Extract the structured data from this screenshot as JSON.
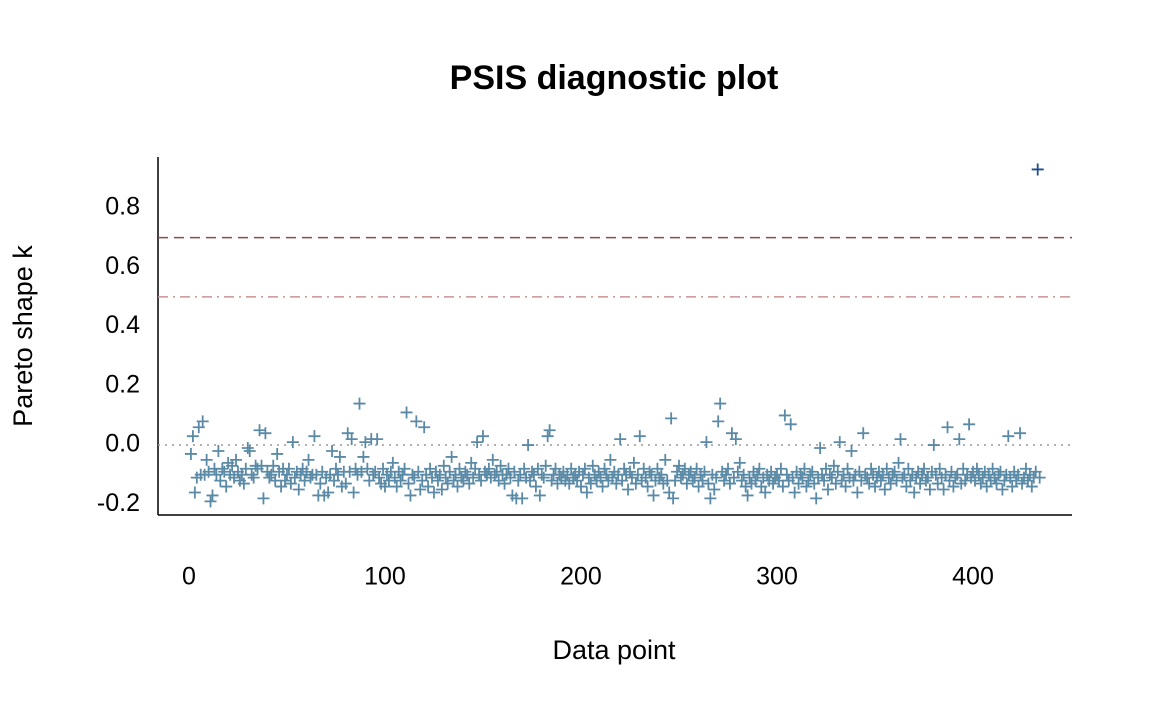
{
  "chart_data": {
    "type": "scatter",
    "title": "PSIS diagnostic plot",
    "x_label": "Data point",
    "y_label": "Pareto shape k",
    "xlim": [
      -15.8,
      450.5
    ],
    "ylim": [
      -0.236,
      0.972
    ],
    "xticks": [
      0,
      100,
      200,
      300,
      400
    ],
    "yticks": [
      -0.2,
      {
        "value": 0,
        "label": "0.0"
      },
      0.2,
      0.4,
      0.6,
      0.8
    ],
    "hlines": [
      {
        "value": 0,
        "color": "#999999",
        "style": "dotted"
      },
      {
        "value": 0.5,
        "color": "#c99393",
        "style": "dashdot"
      },
      {
        "value": 0.7,
        "color": "#8f4c4c",
        "style": "dashed"
      }
    ],
    "marker": "plus",
    "series": [
      {
        "color": "#5b8aa6",
        "x": [
          1,
          2,
          3,
          4,
          5,
          6,
          7,
          8,
          9,
          10,
          11,
          12,
          13,
          14,
          15,
          16,
          17,
          18,
          19,
          20,
          21,
          22,
          23,
          24,
          25,
          26,
          27,
          28,
          29,
          30,
          31,
          32,
          33,
          34,
          35,
          36,
          37,
          38,
          39,
          40,
          41,
          42,
          43,
          44,
          45,
          46,
          47,
          48,
          49,
          50,
          51,
          52,
          53,
          54,
          55,
          56,
          57,
          58,
          59,
          60,
          61,
          62,
          63,
          64,
          65,
          66,
          67,
          68,
          69,
          70,
          71,
          72,
          73,
          74,
          75,
          76,
          77,
          78,
          79,
          80,
          81,
          82,
          83,
          84,
          85,
          86,
          87,
          88,
          89,
          90,
          91,
          92,
          93,
          94,
          95,
          96,
          97,
          98,
          99,
          100,
          101,
          102,
          103,
          104,
          105,
          106,
          107,
          108,
          109,
          110,
          111,
          112,
          113,
          114,
          115,
          116,
          117,
          118,
          119,
          120,
          121,
          122,
          123,
          124,
          125,
          126,
          127,
          128,
          129,
          130,
          131,
          132,
          133,
          134,
          135,
          136,
          137,
          138,
          139,
          140,
          141,
          142,
          143,
          144,
          145,
          146,
          147,
          148,
          149,
          150,
          151,
          152,
          153,
          154,
          155,
          156,
          157,
          158,
          159,
          160,
          161,
          162,
          163,
          164,
          165,
          166,
          167,
          168,
          169,
          170,
          171,
          172,
          173,
          174,
          175,
          176,
          177,
          178,
          179,
          180,
          181,
          182,
          183,
          184,
          185,
          186,
          187,
          188,
          189,
          190,
          191,
          192,
          193,
          194,
          195,
          196,
          197,
          198,
          199,
          200,
          201,
          202,
          203,
          204,
          205,
          206,
          207,
          208,
          209,
          210,
          211,
          212,
          213,
          214,
          215,
          216,
          217,
          218,
          219,
          220,
          221,
          222,
          223,
          224,
          225,
          226,
          227,
          228,
          229,
          230,
          231,
          232,
          233,
          234,
          235,
          236,
          237,
          238,
          239,
          240,
          241,
          242,
          243,
          244,
          245,
          246,
          247,
          248,
          249,
          250,
          251,
          252,
          253,
          254,
          255,
          256,
          257,
          258,
          259,
          260,
          261,
          262,
          263,
          264,
          265,
          266,
          267,
          268,
          269,
          270,
          271,
          272,
          273,
          274,
          275,
          276,
          277,
          278,
          279,
          280,
          281,
          282,
          283,
          284,
          285,
          286,
          287,
          288,
          289,
          290,
          291,
          292,
          293,
          294,
          295,
          296,
          297,
          298,
          299,
          300,
          301,
          302,
          303,
          304,
          305,
          306,
          307,
          308,
          309,
          310,
          311,
          312,
          313,
          314,
          315,
          316,
          317,
          318,
          319,
          320,
          321,
          322,
          323,
          324,
          325,
          326,
          327,
          328,
          329,
          330,
          331,
          332,
          333,
          334,
          335,
          336,
          337,
          338,
          339,
          340,
          341,
          342,
          343,
          344,
          345,
          346,
          347,
          348,
          349,
          350,
          351,
          352,
          353,
          354,
          355,
          356,
          357,
          358,
          359,
          360,
          361,
          362,
          363,
          364,
          365,
          366,
          367,
          368,
          369,
          370,
          371,
          372,
          373,
          374,
          375,
          376,
          377,
          378,
          379,
          380,
          381,
          382,
          383,
          384,
          385,
          386,
          387,
          388,
          389,
          390,
          391,
          392,
          393,
          394,
          395,
          396,
          397,
          398,
          399,
          400,
          401,
          402,
          403,
          404,
          405,
          406,
          407,
          408,
          409,
          410,
          411,
          412,
          413,
          414,
          415,
          416,
          417,
          418,
          419,
          420,
          421,
          422,
          423,
          424,
          425,
          426,
          427,
          428,
          429,
          430,
          431,
          432,
          434
        ],
        "values": [
          -0.03,
          0.03,
          -0.16,
          -0.11,
          0.06,
          -0.1,
          0.08,
          -0.1,
          -0.05,
          -0.09,
          -0.19,
          -0.17,
          -0.08,
          -0.1,
          -0.02,
          -0.12,
          -0.08,
          -0.09,
          -0.14,
          -0.06,
          -0.1,
          -0.07,
          -0.11,
          -0.05,
          -0.09,
          -0.12,
          -0.1,
          -0.13,
          -0.08,
          -0.01,
          -0.02,
          -0.1,
          -0.11,
          -0.07,
          -0.08,
          0.05,
          -0.07,
          -0.18,
          0.04,
          -0.09,
          -0.11,
          -0.1,
          -0.07,
          -0.12,
          -0.03,
          -0.09,
          -0.14,
          -0.08,
          -0.12,
          -0.1,
          -0.08,
          -0.13,
          0.01,
          -0.11,
          -0.09,
          -0.15,
          -0.1,
          -0.08,
          -0.12,
          -0.09,
          -0.05,
          -0.11,
          -0.1,
          0.03,
          -0.1,
          -0.17,
          -0.13,
          -0.09,
          -0.17,
          -0.11,
          -0.16,
          -0.1,
          -0.02,
          -0.12,
          -0.08,
          -0.1,
          -0.04,
          -0.14,
          -0.09,
          -0.13,
          0.04,
          -0.09,
          0.02,
          -0.16,
          -0.08,
          -0.1,
          0.14,
          -0.09,
          -0.04,
          0.01,
          -0.08,
          -0.12,
          0.02,
          -0.1,
          -0.09,
          0.02,
          -0.11,
          -0.13,
          -0.08,
          -0.14,
          -0.1,
          -0.12,
          -0.09,
          -0.06,
          -0.11,
          -0.14,
          -0.09,
          -0.12,
          -0.1,
          -0.08,
          0.11,
          -0.13,
          -0.17,
          -0.1,
          -0.11,
          0.08,
          -0.09,
          -0.15,
          -0.12,
          0.06,
          -0.1,
          -0.14,
          -0.08,
          -0.11,
          -0.16,
          -0.09,
          -0.12,
          -0.1,
          -0.15,
          -0.07,
          -0.11,
          -0.13,
          -0.09,
          -0.04,
          -0.12,
          -0.1,
          -0.14,
          -0.08,
          -0.11,
          -0.12,
          -0.09,
          -0.1,
          -0.13,
          -0.06,
          -0.11,
          -0.08,
          0.01,
          -0.1,
          -0.12,
          0.03,
          -0.09,
          -0.1,
          -0.08,
          -0.11,
          -0.05,
          -0.1,
          -0.09,
          -0.12,
          -0.07,
          -0.1,
          -0.13,
          -0.1,
          -0.08,
          -0.11,
          -0.17,
          -0.09,
          -0.18,
          -0.12,
          -0.1,
          -0.18,
          -0.08,
          -0.11,
          0.0,
          -0.12,
          -0.09,
          -0.1,
          -0.14,
          -0.08,
          -0.17,
          -0.1,
          -0.11,
          -0.07,
          0.03,
          0.05,
          -0.12,
          -0.1,
          -0.08,
          -0.13,
          -0.1,
          -0.11,
          -0.09,
          -0.12,
          -0.1,
          -0.13,
          -0.08,
          -0.11,
          -0.1,
          -0.12,
          -0.09,
          -0.14,
          -0.1,
          -0.08,
          -0.16,
          -0.11,
          -0.13,
          -0.07,
          -0.1,
          -0.12,
          -0.09,
          -0.11,
          -0.14,
          -0.08,
          -0.1,
          -0.12,
          -0.05,
          -0.11,
          -0.09,
          -0.13,
          -0.1,
          0.02,
          -0.12,
          -0.08,
          -0.1,
          -0.15,
          -0.09,
          -0.11,
          -0.06,
          -0.13,
          -0.1,
          0.03,
          -0.12,
          -0.08,
          -0.11,
          -0.14,
          -0.09,
          -0.1,
          -0.17,
          -0.12,
          -0.08,
          -0.11,
          -0.1,
          -0.13,
          -0.05,
          -0.12,
          -0.16,
          0.09,
          -0.18,
          -0.12,
          -0.09,
          -0.07,
          -0.11,
          -0.1,
          -0.08,
          -0.13,
          -0.1,
          -0.09,
          -0.12,
          -0.11,
          -0.08,
          -0.14,
          -0.1,
          -0.12,
          -0.09,
          0.01,
          -0.13,
          -0.18,
          -0.1,
          -0.15,
          -0.11,
          0.08,
          0.14,
          -0.09,
          -0.12,
          -0.1,
          -0.08,
          -0.13,
          0.04,
          -0.11,
          0.02,
          -0.09,
          -0.06,
          -0.12,
          -0.1,
          -0.14,
          -0.17,
          -0.11,
          -0.13,
          -0.09,
          -0.12,
          -0.1,
          -0.08,
          -0.14,
          -0.11,
          -0.16,
          -0.1,
          -0.12,
          -0.09,
          -0.13,
          -0.11,
          -0.1,
          -0.12,
          -0.08,
          -0.14,
          0.1,
          -0.1,
          -0.12,
          0.07,
          -0.11,
          -0.16,
          -0.09,
          -0.13,
          -0.1,
          -0.11,
          -0.08,
          -0.14,
          -0.12,
          -0.1,
          -0.09,
          -0.13,
          -0.18,
          -0.11,
          -0.01,
          -0.1,
          -0.12,
          -0.08,
          -0.15,
          -0.1,
          -0.11,
          -0.07,
          -0.13,
          -0.09,
          0.01,
          -0.12,
          -0.1,
          -0.14,
          -0.08,
          -0.11,
          -0.02,
          -0.12,
          -0.1,
          -0.16,
          -0.09,
          -0.12,
          0.04,
          -0.1,
          -0.11,
          -0.13,
          -0.08,
          -0.1,
          -0.14,
          -0.11,
          -0.09,
          -0.12,
          -0.1,
          -0.15,
          -0.08,
          -0.11,
          -0.13,
          -0.1,
          -0.09,
          -0.12,
          -0.06,
          0.02,
          -0.11,
          -0.1,
          -0.14,
          -0.08,
          -0.12,
          -0.1,
          -0.16,
          -0.11,
          -0.09,
          -0.13,
          -0.1,
          -0.08,
          -0.12,
          -0.11,
          -0.15,
          -0.09,
          0.0,
          -0.1,
          -0.13,
          -0.08,
          -0.11,
          -0.15,
          -0.1,
          0.06,
          -0.12,
          -0.09,
          -0.14,
          -0.11,
          -0.1,
          0.02,
          -0.13,
          -0.08,
          -0.12,
          -0.1,
          0.07,
          -0.11,
          -0.09,
          -0.12,
          -0.08,
          -0.1,
          -0.13,
          -0.11,
          -0.09,
          -0.14,
          -0.1,
          -0.12,
          -0.08,
          -0.11,
          -0.13,
          -0.1,
          -0.09,
          -0.15,
          -0.12,
          -0.1,
          0.03,
          -0.11,
          -0.14,
          -0.09,
          -0.12,
          -0.1,
          0.04,
          -0.13,
          -0.11,
          -0.08,
          -0.12,
          -0.1,
          -0.14,
          -0.11,
          -0.09,
          -0.11
        ]
      },
      {
        "color": "#1f4e8f",
        "x": [
          433
        ],
        "values": [
          0.93
        ]
      }
    ]
  }
}
